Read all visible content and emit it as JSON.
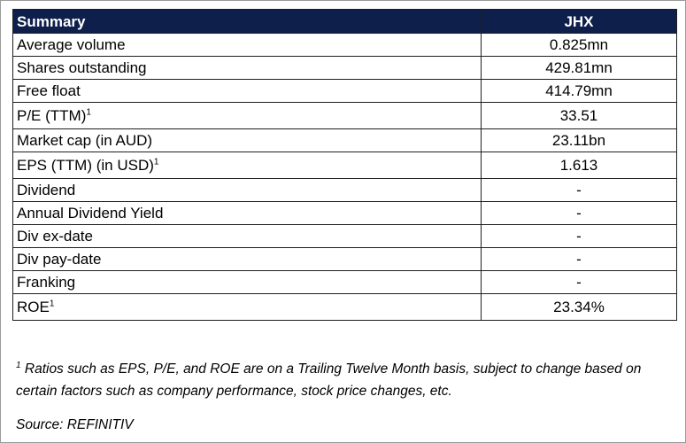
{
  "table": {
    "header": {
      "label": "Summary",
      "value": "JHX"
    },
    "rows": [
      {
        "label": "Average volume",
        "sup": "",
        "value": "0.825mn"
      },
      {
        "label": "Shares outstanding",
        "sup": "",
        "value": "429.81mn"
      },
      {
        "label": "Free float",
        "sup": "",
        "value": "414.79mn"
      },
      {
        "label": "P/E (TTM)",
        "sup": "1",
        "value": "33.51"
      },
      {
        "label": "Market cap (in AUD)",
        "sup": "",
        "value": "23.11bn"
      },
      {
        "label": "EPS (TTM) (in USD)",
        "sup": "1",
        "value": "1.613"
      },
      {
        "label": "Dividend",
        "sup": "",
        "value": "-"
      },
      {
        "label": "Annual Dividend Yield",
        "sup": "",
        "value": "-"
      },
      {
        "label": "Div ex-date",
        "sup": "",
        "value": "-"
      },
      {
        "label": "Div pay-date",
        "sup": "",
        "value": "-"
      },
      {
        "label": "Franking",
        "sup": "",
        "value": "-"
      },
      {
        "label": "ROE",
        "sup": "1",
        "value": "23.34%"
      }
    ]
  },
  "footnote": {
    "marker": "1",
    "text": "Ratios such as EPS, P/E, and ROE are on a Trailing Twelve Month basis, subject to change based on certain factors such as company performance, stock price changes, etc."
  },
  "source": "Source: REFINITIV",
  "colors": {
    "header_bg": "#0f1f4b",
    "header_text": "#ffffff",
    "border": "#1f1f1f"
  }
}
